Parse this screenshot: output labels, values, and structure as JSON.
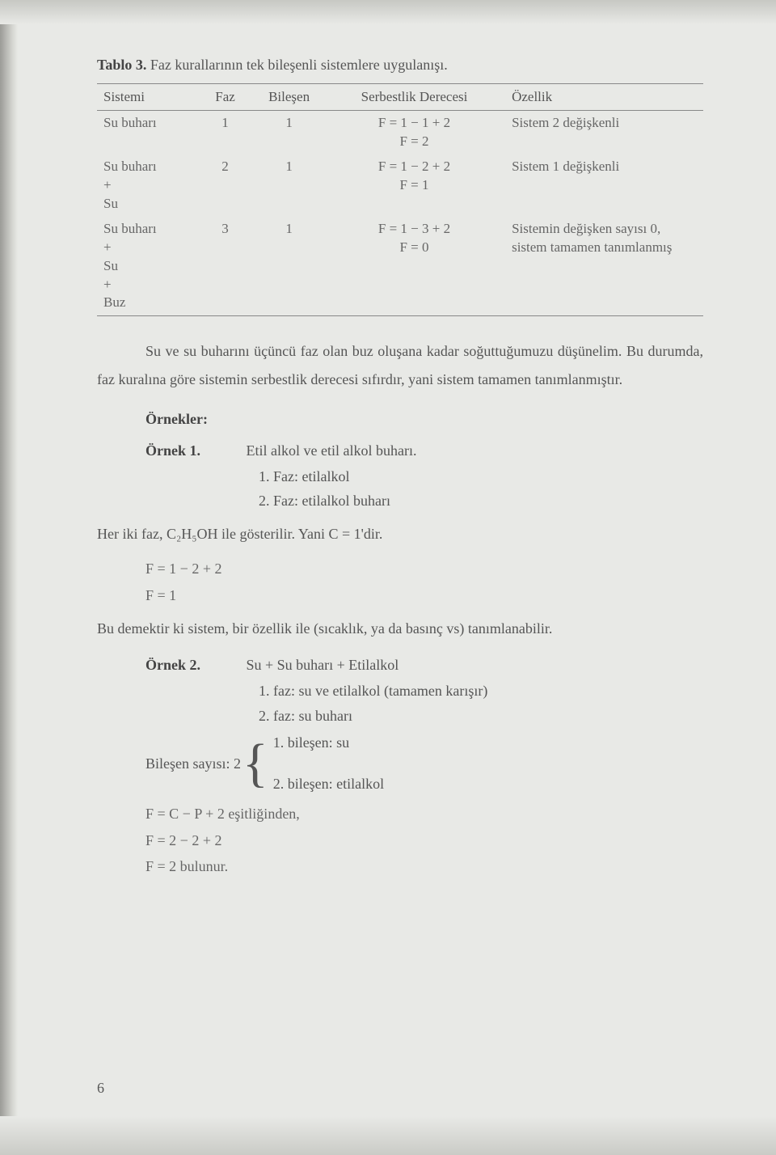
{
  "caption_label": "Tablo 3.",
  "caption_text": " Faz kurallarının tek bileşenli sistemlere uygulanışı.",
  "table": {
    "headers": [
      "Sistemi",
      "Faz",
      "Bileşen",
      "Serbestlik Derecesi",
      "Özellik"
    ],
    "rows": [
      {
        "system": "Su buharı",
        "faz": "1",
        "bilesen": "1",
        "f_lines": [
          "F = 1 − 1 + 2",
          "F = 2"
        ],
        "ozellik": "Sistem 2 değişkenli"
      },
      {
        "system": "Su buharı\n+\nSu",
        "faz": "2",
        "bilesen": "1",
        "f_lines": [
          "F = 1 − 2 + 2",
          "F = 1"
        ],
        "ozellik": "Sistem 1 değişkenli"
      },
      {
        "system": "Su buharı\n+\nSu\n+\nBuz",
        "faz": "3",
        "bilesen": "1",
        "f_lines": [
          "F = 1 − 3 + 2",
          "F = 0"
        ],
        "ozellik": "Sistemin değişken sayısı 0, sistem tamamen tanımlanmış"
      }
    ]
  },
  "paragraph1": "Su ve su buharını üçüncü faz olan buz oluşana kadar soğuttuğumuzu düşünelim. Bu durumda, faz kuralına göre sistemin serbestlik derecesi sıfırdır, yani sistem tamamen tanımlanmıştır.",
  "ornekler_label": "Örnekler:",
  "ornek1": {
    "label": "Örnek 1.",
    "title": "Etil alkol ve etil alkol buharı.",
    "lines": [
      "1. Faz: etilalkol",
      "2. Faz: etilalkol buharı"
    ]
  },
  "line_heriki": "Her iki faz, C₂H₅OH ile gösterilir. Yani C = 1'dir.",
  "calc1": [
    "F = 1 − 2 + 2",
    "F = 1"
  ],
  "line_budemektir": "Bu demektir ki sistem, bir özellik ile (sıcaklık, ya da basınç vs) tanımlanabilir.",
  "ornek2": {
    "label": "Örnek 2.",
    "title": "Su + Su buharı + Etilalkol",
    "lines": [
      "1. faz: su ve etilalkol (tamamen karışır)",
      "2. faz: su buharı"
    ]
  },
  "bilesen": {
    "label": "Bileşen sayısı: 2",
    "items": [
      "1. bileşen: su",
      "2. bileşen: etilalkol"
    ]
  },
  "calc2": [
    "F = C − P + 2   eşitliğinden,",
    "F = 2 − 2 + 2",
    "F = 2   bulunur."
  ],
  "page_number": "6"
}
